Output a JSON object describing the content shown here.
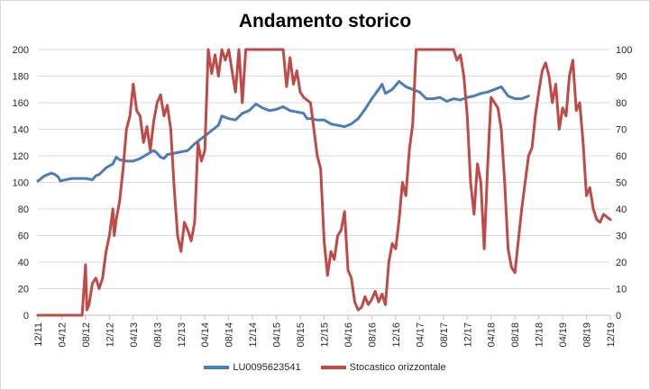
{
  "chart_data": {
    "type": "line",
    "title": "Andamento storico",
    "xlabel": "",
    "ylabel": "",
    "x_tick_labels": [
      "12/11",
      "04/12",
      "08/12",
      "12/12",
      "04/13",
      "08/13",
      "12/13",
      "04/14",
      "08/14",
      "12/14",
      "04/15",
      "08/15",
      "12/15",
      "04/16",
      "08/16",
      "12/16",
      "04/17",
      "08/17",
      "12/17",
      "04/18",
      "08/18",
      "12/18",
      "04/19",
      "08/19",
      "12/19"
    ],
    "ylim_left": [
      0,
      200
    ],
    "ylim_right": [
      0,
      100
    ],
    "y_ticks_left": [
      "0",
      "20",
      "40",
      "60",
      "80",
      "100",
      "120",
      "140",
      "160",
      "180",
      "200"
    ],
    "y_ticks_right": [
      "0",
      "10",
      "20",
      "30",
      "40",
      "50",
      "60",
      "70",
      "80",
      "90",
      "100"
    ],
    "grid": true,
    "legend_position": "bottom",
    "series": [
      {
        "name": "LU0095623541",
        "axis": "left",
        "color": "#4a7ebb",
        "points": [
          [
            0,
            101
          ],
          [
            0.5,
            103
          ],
          [
            1,
            105
          ],
          [
            1.5,
            106
          ],
          [
            2,
            107
          ],
          [
            2.5,
            106
          ],
          [
            3,
            104
          ],
          [
            3.3,
            101
          ],
          [
            4,
            102
          ],
          [
            5,
            103
          ],
          [
            6,
            103
          ],
          [
            7,
            103
          ],
          [
            8,
            102
          ],
          [
            8.5,
            105
          ],
          [
            9,
            106
          ],
          [
            10,
            111
          ],
          [
            11,
            114
          ],
          [
            11.5,
            119
          ],
          [
            12,
            117
          ],
          [
            13,
            116
          ],
          [
            14,
            116
          ],
          [
            15,
            118
          ],
          [
            16,
            121
          ],
          [
            17,
            124
          ],
          [
            17.5,
            122
          ],
          [
            18,
            119
          ],
          [
            18.5,
            118
          ],
          [
            19,
            121
          ],
          [
            20,
            122
          ],
          [
            21,
            123
          ],
          [
            22,
            124
          ],
          [
            23,
            129
          ],
          [
            24,
            133
          ],
          [
            25,
            137
          ],
          [
            26,
            141
          ],
          [
            26.5,
            143
          ],
          [
            27,
            150
          ],
          [
            28,
            148
          ],
          [
            29,
            147
          ],
          [
            30,
            152
          ],
          [
            31,
            154
          ],
          [
            32,
            159
          ],
          [
            33,
            156
          ],
          [
            34,
            154
          ],
          [
            35,
            155
          ],
          [
            36,
            157
          ],
          [
            37,
            154
          ],
          [
            38,
            153
          ],
          [
            39,
            152
          ],
          [
            39.5,
            148
          ],
          [
            40,
            148
          ],
          [
            41,
            147
          ],
          [
            42,
            147
          ],
          [
            43,
            144
          ],
          [
            44,
            143
          ],
          [
            45,
            142
          ],
          [
            46,
            144
          ],
          [
            47,
            148
          ],
          [
            48,
            155
          ],
          [
            49,
            163
          ],
          [
            50,
            170
          ],
          [
            50.5,
            174
          ],
          [
            51,
            167
          ],
          [
            52,
            170
          ],
          [
            53,
            176
          ],
          [
            54,
            172
          ],
          [
            55,
            170
          ],
          [
            56,
            168
          ],
          [
            57,
            163
          ],
          [
            58,
            163
          ],
          [
            59,
            164
          ],
          [
            60,
            161
          ],
          [
            61,
            163
          ],
          [
            62,
            162
          ],
          [
            63,
            164
          ],
          [
            64,
            165
          ],
          [
            65,
            167
          ],
          [
            66,
            168
          ],
          [
            67,
            170
          ],
          [
            68,
            172
          ],
          [
            69,
            165
          ],
          [
            70,
            163
          ],
          [
            71,
            163
          ],
          [
            72,
            165
          ]
        ]
      },
      {
        "name": "Stocastico orizzontale",
        "axis": "right",
        "color": "#be4b48",
        "points": [
          [
            0,
            0
          ],
          [
            6,
            0
          ],
          [
            6.5,
            0
          ],
          [
            7,
            19
          ],
          [
            7.2,
            2
          ],
          [
            7.5,
            4
          ],
          [
            8,
            12
          ],
          [
            8.5,
            14
          ],
          [
            9,
            10
          ],
          [
            9.5,
            14
          ],
          [
            10,
            24
          ],
          [
            10.5,
            30
          ],
          [
            11,
            40
          ],
          [
            11.2,
            30
          ],
          [
            11.5,
            36
          ],
          [
            12,
            43
          ],
          [
            12.5,
            55
          ],
          [
            13,
            70
          ],
          [
            13.5,
            75
          ],
          [
            14,
            87
          ],
          [
            14.5,
            77
          ],
          [
            15,
            75
          ],
          [
            15.5,
            65
          ],
          [
            16,
            71
          ],
          [
            16.5,
            62
          ],
          [
            17,
            73
          ],
          [
            17.5,
            80
          ],
          [
            18,
            83
          ],
          [
            18.5,
            75
          ],
          [
            19,
            79
          ],
          [
            19.5,
            70
          ],
          [
            20,
            48
          ],
          [
            20.5,
            30
          ],
          [
            21,
            24
          ],
          [
            21.5,
            35
          ],
          [
            22,
            32
          ],
          [
            22.5,
            28
          ],
          [
            23,
            35
          ],
          [
            23.5,
            65
          ],
          [
            24,
            58
          ],
          [
            24.5,
            62
          ],
          [
            25,
            100
          ],
          [
            25.5,
            91
          ],
          [
            26,
            98
          ],
          [
            26.5,
            90
          ],
          [
            27,
            100
          ],
          [
            27.5,
            96
          ],
          [
            28,
            100
          ],
          [
            28.5,
            92
          ],
          [
            29,
            84
          ],
          [
            29.5,
            100
          ],
          [
            30,
            80
          ],
          [
            30.5,
            100
          ],
          [
            31,
            100
          ],
          [
            31.5,
            100
          ],
          [
            32,
            100
          ],
          [
            32.5,
            100
          ],
          [
            33,
            100
          ],
          [
            35,
            100
          ],
          [
            36,
            100
          ],
          [
            36.5,
            86
          ],
          [
            37,
            97
          ],
          [
            37.5,
            87
          ],
          [
            38,
            92
          ],
          [
            38.5,
            84
          ],
          [
            39,
            82
          ],
          [
            40,
            80
          ],
          [
            40.5,
            70
          ],
          [
            41,
            60
          ],
          [
            41.5,
            55
          ],
          [
            42,
            28
          ],
          [
            42.5,
            15
          ],
          [
            43,
            24
          ],
          [
            43.5,
            21
          ],
          [
            44,
            30
          ],
          [
            44.5,
            32
          ],
          [
            45,
            39
          ],
          [
            45.5,
            17
          ],
          [
            46,
            14
          ],
          [
            46.5,
            5
          ],
          [
            47,
            2
          ],
          [
            47.5,
            3
          ],
          [
            48,
            7
          ],
          [
            48.5,
            4
          ],
          [
            49,
            6
          ],
          [
            49.5,
            9
          ],
          [
            50,
            5
          ],
          [
            50.5,
            8
          ],
          [
            51,
            4
          ],
          [
            51.5,
            20
          ],
          [
            52,
            27
          ],
          [
            52.5,
            25
          ],
          [
            53,
            36
          ],
          [
            53.5,
            50
          ],
          [
            54,
            45
          ],
          [
            54.5,
            62
          ],
          [
            55,
            72
          ],
          [
            55.5,
            100
          ],
          [
            56,
            100
          ],
          [
            60,
            100
          ],
          [
            61,
            100
          ],
          [
            61.5,
            96
          ],
          [
            62,
            98
          ],
          [
            62.5,
            90
          ],
          [
            63,
            75
          ],
          [
            63.5,
            50
          ],
          [
            64,
            38
          ],
          [
            64.5,
            57
          ],
          [
            65,
            50
          ],
          [
            65.5,
            25
          ],
          [
            66,
            56
          ],
          [
            66.5,
            82
          ],
          [
            67,
            80
          ],
          [
            67.5,
            78
          ],
          [
            68,
            70
          ],
          [
            68.5,
            50
          ],
          [
            69,
            25
          ],
          [
            69.5,
            18
          ],
          [
            70,
            16
          ],
          [
            70.5,
            28
          ],
          [
            71,
            40
          ],
          [
            71.5,
            50
          ],
          [
            72,
            60
          ],
          [
            72.5,
            63
          ],
          [
            73,
            75
          ],
          [
            73.5,
            84
          ],
          [
            74,
            92
          ],
          [
            74.5,
            95
          ],
          [
            75,
            90
          ],
          [
            75.5,
            80
          ],
          [
            76,
            87
          ],
          [
            76.5,
            70
          ],
          [
            77,
            78
          ],
          [
            77.5,
            75
          ],
          [
            78,
            90
          ],
          [
            78.5,
            96
          ],
          [
            79,
            77
          ],
          [
            79.5,
            80
          ],
          [
            80,
            65
          ],
          [
            80.5,
            45
          ],
          [
            81,
            48
          ],
          [
            81.5,
            40
          ],
          [
            82,
            36
          ],
          [
            82.5,
            35
          ],
          [
            83,
            38
          ],
          [
            83.5,
            37
          ],
          [
            84,
            36
          ]
        ]
      }
    ]
  }
}
